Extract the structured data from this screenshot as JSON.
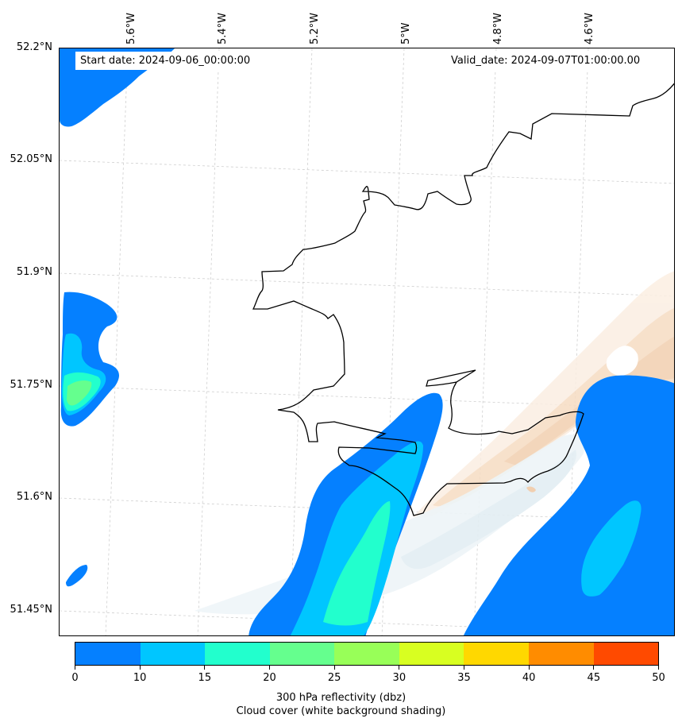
{
  "annotations": {
    "start_date": "Start date: 2024-09-06_00:00:00",
    "valid_date": "Valid_date: 2024-09-07T01:00:00.00"
  },
  "grid": {
    "lat_labels": [
      "52.2°N",
      "52.05°N",
      "51.9°N",
      "51.75°N",
      "51.6°N",
      "51.45°N"
    ],
    "lon_labels": [
      "5.6°W",
      "5.4°W",
      "5.2°W",
      "5°W",
      "4.8°W",
      "4.6°W"
    ]
  },
  "colorbar": {
    "ticks": [
      "0",
      "10",
      "15",
      "20",
      "25",
      "30",
      "35",
      "40",
      "45",
      "50"
    ],
    "colors": [
      "#0580ff",
      "#00c6ff",
      "#22ffcd",
      "#65ff8e",
      "#98ff58",
      "#d8ff21",
      "#ffd800",
      "#ff8c00",
      "#ff4a00"
    ],
    "label_line1": "300 hPa reflectivity (dbz)",
    "label_line2": "Cloud cover (white background shading)"
  },
  "map": {
    "coastline_color": "#000000",
    "cloud_warm_color": "#f6dcc3",
    "cloud_cool_color": "#e3eef3"
  }
}
